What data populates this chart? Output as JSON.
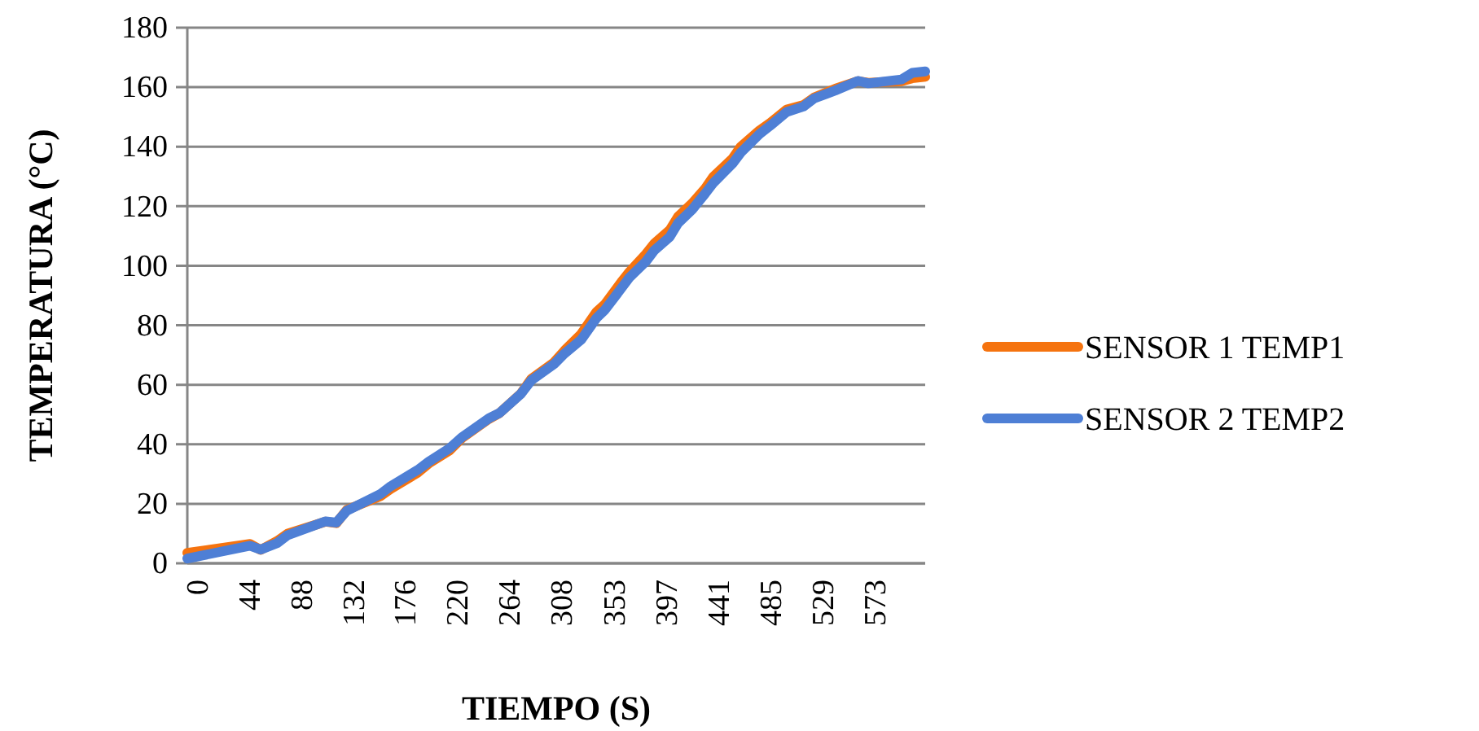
{
  "chart_data": {
    "type": "line",
    "xlabel": "TIEMPO (S)",
    "ylabel": "TEMPERATURA (°C)",
    "xlim": [
      -8,
      616
    ],
    "xticks": [
      0,
      44,
      88,
      132,
      176,
      220,
      264,
      308,
      353,
      397,
      441,
      485,
      529,
      573
    ],
    "ylim": [
      0,
      180
    ],
    "yticks": [
      0,
      20,
      40,
      60,
      80,
      100,
      120,
      140,
      160,
      180
    ],
    "grid": "y",
    "legend": "right",
    "marker": "none",
    "line_style": "solid",
    "series": [
      {
        "name": "SENSOR 1 TEMP1",
        "color": "#f5730f",
        "x": [
          -8,
          45,
          54,
          68,
          77,
          109,
          118,
          127,
          155,
          164,
          187,
          196,
          214,
          224,
          247,
          256,
          274,
          283,
          302,
          311,
          325,
          338,
          345,
          359,
          366,
          380,
          387,
          400,
          407,
          419,
          430,
          437,
          453,
          460,
          476,
          485,
          499,
          513,
          522,
          540,
          559,
          568,
          596,
          605,
          616
        ],
        "values": [
          3.5,
          6.5,
          4.5,
          7.5,
          10,
          14,
          13.5,
          18,
          22.5,
          25,
          30.5,
          33.5,
          38,
          42,
          48.5,
          50.5,
          57,
          62,
          67.5,
          71.5,
          77,
          84.5,
          87,
          94.5,
          98,
          104,
          107.5,
          112,
          116.5,
          121,
          126,
          130,
          136,
          140,
          145.5,
          148,
          152.5,
          154,
          156.5,
          159.5,
          162,
          161.5,
          162,
          163,
          163.5
        ]
      },
      {
        "name": "SENSOR 2 TEMP2",
        "color": "#4e7fd5",
        "x": [
          -8,
          45,
          54,
          68,
          77,
          109,
          118,
          127,
          155,
          164,
          187,
          196,
          214,
          224,
          247,
          256,
          274,
          283,
          302,
          311,
          325,
          338,
          345,
          359,
          366,
          380,
          387,
          400,
          407,
          419,
          430,
          437,
          453,
          460,
          476,
          485,
          499,
          513,
          522,
          540,
          559,
          568,
          596,
          605,
          616
        ],
        "values": [
          1.6,
          5.9,
          4.6,
          6.8,
          9.5,
          14.1,
          13.7,
          17.7,
          23.2,
          25.9,
          31.4,
          34.1,
          38.7,
          42.3,
          48.7,
          50.5,
          56.9,
          61.5,
          66.9,
          70.5,
          75.1,
          82.4,
          85.1,
          92.4,
          96.1,
          101.5,
          105.2,
          109.7,
          114.3,
          118.9,
          124.3,
          127.9,
          134.3,
          138,
          144.3,
          147.1,
          151.7,
          153.5,
          156.2,
          158.9,
          162.1,
          161.3,
          162.6,
          164.8,
          165.3
        ]
      }
    ]
  }
}
